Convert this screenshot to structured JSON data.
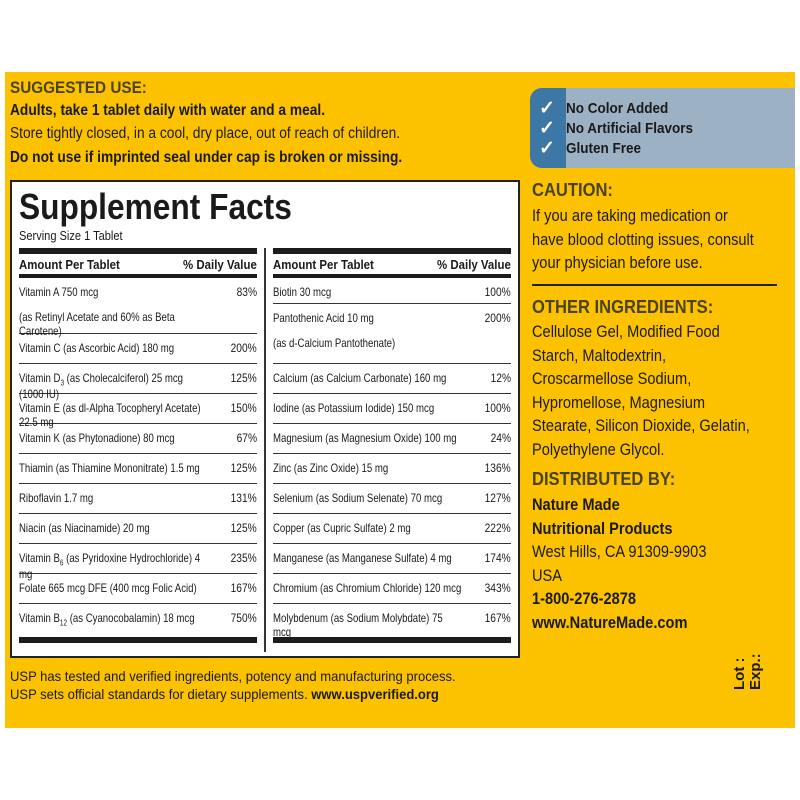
{
  "suggested_use": {
    "heading": "SUGGESTED USE:",
    "line1": "Adults, take 1 tablet daily with water and a meal.",
    "line2": "Store tightly closed, in a cool, dry place, out of reach of children.",
    "line3": "Do not use if imprinted seal under cap is broken or missing."
  },
  "badges": [
    "No Color Added",
    "No Artificial Flavors",
    "Gluten Free"
  ],
  "colors": {
    "panel": "#fcc200",
    "heading": "#4a4220",
    "badge_blue": "#3c77a6",
    "badge_gray": "#9db1c5"
  },
  "facts": {
    "title": "Supplement Facts",
    "serving": "Serving Size 1 Tablet",
    "col_amount": "Amount Per Tablet",
    "col_dv": "% Daily Value",
    "left": [
      {
        "name": "Vitamin A",
        "sub": "",
        "rest": " 750 mcg",
        "line2": "(as Retinyl Acetate and 60% as Beta Carotene)",
        "dv": "83%"
      },
      {
        "name": "Vitamin C (as Ascorbic Acid) 180 mg",
        "sub": "",
        "rest": "",
        "dv": "200%"
      },
      {
        "name": "Vitamin D",
        "sub": "3",
        "rest": " (as Cholecalciferol) 25 mcg (1000 IU)",
        "dv": "125%"
      },
      {
        "name": "Vitamin E (as dl-Alpha Tocopheryl Acetate) 22.5 mg",
        "sub": "",
        "rest": "",
        "dv": "150%"
      },
      {
        "name": "Vitamin K (as Phytonadione) 80 mcg",
        "sub": "",
        "rest": "",
        "dv": "67%"
      },
      {
        "name": "Thiamin (as Thiamine Mononitrate) 1.5 mg",
        "sub": "",
        "rest": "",
        "dv": "125%"
      },
      {
        "name": "Riboflavin 1.7 mg",
        "sub": "",
        "rest": "",
        "dv": "131%"
      },
      {
        "name": "Niacin (as Niacinamide) 20 mg",
        "sub": "",
        "rest": "",
        "dv": "125%"
      },
      {
        "name": "Vitamin B",
        "sub": "6",
        "rest": " (as Pyridoxine Hydrochloride) 4 mg",
        "dv": "235%"
      },
      {
        "name": "Folate 665 mcg DFE (400 mcg Folic Acid)",
        "sub": "",
        "rest": "",
        "dv": "167%"
      },
      {
        "name": "Vitamin B",
        "sub": "12",
        "rest": " (as Cyanocobalamin) 18 mcg",
        "dv": "750%"
      }
    ],
    "right": [
      {
        "name": "Biotin 30 mcg",
        "dv": "100%"
      },
      {
        "name": "Pantothenic Acid 10 mg",
        "line2": "(as d-Calcium Pantothenate)",
        "dv": "200%"
      },
      {
        "name": "Calcium (as Calcium Carbonate) 160 mg",
        "dv": "12%"
      },
      {
        "name": "Iodine (as Potassium Iodide) 150 mcg",
        "dv": "100%"
      },
      {
        "name": "Magnesium (as Magnesium Oxide) 100 mg",
        "dv": "24%"
      },
      {
        "name": "Zinc (as Zinc Oxide) 15 mg",
        "dv": "136%"
      },
      {
        "name": "Selenium (as Sodium Selenate) 70 mcg",
        "dv": "127%"
      },
      {
        "name": "Copper (as Cupric Sulfate) 2 mg",
        "dv": "222%"
      },
      {
        "name": "Manganese (as Manganese Sulfate) 4 mg",
        "dv": "174%"
      },
      {
        "name": "Chromium (as Chromium Chloride) 120 mcg",
        "dv": "343%"
      },
      {
        "name": "Molybdenum (as Sodium Molybdate) 75 mcg",
        "dv": "167%"
      }
    ]
  },
  "usp": {
    "line1": "USP has tested and verified ingredients, potency and manufacturing process.",
    "line2": "USP sets official standards for dietary supplements. ",
    "url": "www.uspverified.org"
  },
  "caution": {
    "heading": "CAUTION:",
    "lines": [
      "If you are taking medication or",
      "have blood clotting issues, consult",
      "your physician before use."
    ]
  },
  "other": {
    "heading": "OTHER INGREDIENTS:",
    "lines": [
      "Cellulose Gel, Modified Food",
      "Starch, Maltodextrin,",
      "Croscarmellose Sodium,",
      "Hypromellose, Magnesium",
      "Stearate, Silicon Dioxide, Gelatin,",
      "Polyethylene Glycol."
    ]
  },
  "distributed": {
    "heading": "DISTRIBUTED BY:",
    "name1": "Nature Made",
    "name2": "Nutritional Products",
    "address": "West Hills, CA 91309-9903",
    "country": "USA",
    "phone": "1-800-276-2878",
    "web": "www.NatureMade.com"
  },
  "lot": {
    "lot": "Lot :",
    "exp": "Exp.:"
  }
}
